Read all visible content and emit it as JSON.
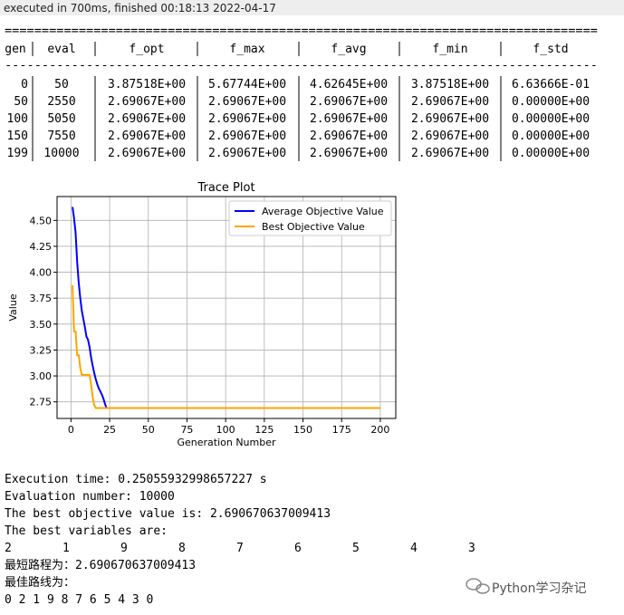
{
  "status": "executed in 700ms, finished 00:18:13 2022-04-17",
  "log": {
    "rule_top": "================================================================================",
    "headers": [
      "gen",
      "eval",
      "f_opt",
      "f_max",
      "f_avg",
      "f_min",
      "f_std"
    ],
    "rule": "--------------------------------------------------------------------------------",
    "rows": [
      [
        0,
        50,
        "3.87518E+00",
        "5.67744E+00",
        "4.62645E+00",
        "3.87518E+00",
        "6.63666E-01"
      ],
      [
        50,
        2550,
        "2.69067E+00",
        "2.69067E+00",
        "2.69067E+00",
        "2.69067E+00",
        "0.00000E+00"
      ],
      [
        100,
        5050,
        "2.69067E+00",
        "2.69067E+00",
        "2.69067E+00",
        "2.69067E+00",
        "0.00000E+00"
      ],
      [
        150,
        7550,
        "2.69067E+00",
        "2.69067E+00",
        "2.69067E+00",
        "2.69067E+00",
        "0.00000E+00"
      ],
      [
        199,
        10000,
        "2.69067E+00",
        "2.69067E+00",
        "2.69067E+00",
        "2.69067E+00",
        "0.00000E+00"
      ]
    ]
  },
  "chart_data": {
    "type": "line",
    "title": "Trace Plot",
    "xlabel": "Generation Number",
    "ylabel": "Value",
    "x": [
      1,
      2,
      3,
      4,
      5,
      6,
      7,
      8,
      9,
      10,
      11,
      12,
      13,
      14,
      15,
      16,
      17,
      18,
      19,
      20,
      21,
      22,
      23,
      200
    ],
    "series": [
      {
        "name": "Average Objective Value",
        "color": "#0000ff",
        "values": [
          4.63,
          4.52,
          4.38,
          4.1,
          3.9,
          3.75,
          3.63,
          3.55,
          3.47,
          3.38,
          3.35,
          3.28,
          3.18,
          3.1,
          3.03,
          2.97,
          2.92,
          2.88,
          2.85,
          2.82,
          2.78,
          2.73,
          2.69,
          2.69
        ]
      },
      {
        "name": "Best Objective Value",
        "color": "#ffa500",
        "values": [
          3.875,
          3.43,
          3.43,
          3.2,
          3.2,
          3.08,
          3.01,
          3.01,
          3.01,
          3.01,
          3.01,
          3.01,
          2.92,
          2.8,
          2.72,
          2.69,
          2.69,
          2.69,
          2.69,
          2.69,
          2.69,
          2.69,
          2.69,
          2.69
        ]
      }
    ],
    "xlim": [
      -9,
      210
    ],
    "ylim": [
      2.59,
      4.73
    ],
    "xticks": [
      0,
      25,
      50,
      75,
      100,
      125,
      150,
      175,
      200
    ],
    "yticks": [
      {
        "value": 2.75,
        "label": "2.75"
      },
      {
        "value": 3.0,
        "label": "3.00"
      },
      {
        "value": 3.25,
        "label": "3.25"
      },
      {
        "value": 3.5,
        "label": "3.50"
      },
      {
        "value": 3.75,
        "label": "3.75"
      },
      {
        "value": 4.0,
        "label": "4.00"
      },
      {
        "value": 4.25,
        "label": "4.25"
      },
      {
        "value": 4.5,
        "label": "4.50"
      }
    ],
    "grid": true,
    "legend": "upper right"
  },
  "output": {
    "lines": [
      "Execution time: 0.25055932998657227 s",
      "Evaluation number: 10000",
      "The best objective value is: 2.690670637009413",
      "The best variables are:"
    ],
    "variables": [
      "2",
      "1",
      "9",
      "8",
      "7",
      "6",
      "5",
      "4",
      "3"
    ],
    "cn_lines": [
      "最短路程为：2.690670637009413",
      "最佳路线为：",
      "0 2 1 9 8 7 6 5 4 3 0"
    ]
  },
  "watermark": "Python学习杂记"
}
